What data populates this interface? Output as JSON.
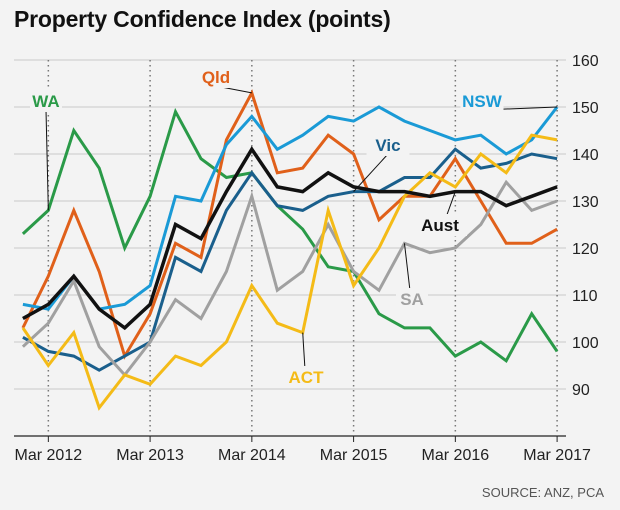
{
  "title": "Property Confidence Index (points)",
  "source": "SOURCE: ANZ, PCA",
  "chart_data": {
    "type": "line",
    "title": "Property Confidence Index (points)",
    "ylim": [
      80,
      160
    ],
    "yticks": [
      90,
      100,
      110,
      120,
      130,
      140,
      150,
      160
    ],
    "x": [
      "Dec 2011",
      "Mar 2012",
      "Jun 2012",
      "Sep 2012",
      "Dec 2012",
      "Mar 2013",
      "Jun 2013",
      "Sep 2013",
      "Dec 2013",
      "Mar 2014",
      "Jun 2014",
      "Sep 2014",
      "Dec 2014",
      "Mar 2015",
      "Jun 2015",
      "Sep 2015",
      "Dec 2015",
      "Mar 2016",
      "Jun 2016",
      "Sep 2016",
      "Dec 2016",
      "Mar 2017"
    ],
    "xtick_labels": [
      "Mar 2012",
      "Mar 2013",
      "Mar 2014",
      "Mar 2015",
      "Mar 2016",
      "Mar 2017"
    ],
    "grid": true,
    "series": [
      {
        "name": "WA",
        "color": "#2a9a48",
        "values": [
          123,
          128,
          145,
          137,
          120,
          131,
          149,
          139,
          135,
          136,
          129,
          124,
          116,
          115,
          106,
          103,
          103,
          97,
          100,
          96,
          106,
          98
        ]
      },
      {
        "name": "Qld",
        "color": "#e0601a",
        "values": [
          103,
          114,
          128,
          115,
          97,
          106,
          121,
          118,
          143,
          153,
          136,
          137,
          144,
          140,
          126,
          131,
          131,
          139,
          130,
          121,
          121,
          124
        ]
      },
      {
        "name": "NSW",
        "color": "#1a9ad6",
        "values": [
          108,
          107,
          114,
          107,
          108,
          112,
          131,
          130,
          142,
          148,
          141,
          144,
          148,
          147,
          150,
          147,
          145,
          143,
          144,
          140,
          143,
          150
        ]
      },
      {
        "name": "Vic",
        "color": "#1a5f8c",
        "values": [
          101,
          98,
          97,
          94,
          97,
          100,
          118,
          115,
          128,
          136,
          129,
          128,
          131,
          132,
          132,
          135,
          135,
          141,
          137,
          138,
          140,
          139
        ]
      },
      {
        "name": "SA",
        "color": "#a0a0a0",
        "values": [
          99,
          104,
          113,
          99,
          93,
          100,
          109,
          105,
          115,
          131,
          111,
          115,
          125,
          115,
          111,
          121,
          119,
          120,
          125,
          134,
          128,
          130
        ]
      },
      {
        "name": "ACT",
        "color": "#f4bb17",
        "values": [
          103,
          95,
          102,
          86,
          93,
          91,
          97,
          95,
          100,
          112,
          104,
          102,
          128,
          112,
          120,
          131,
          136,
          133,
          140,
          136,
          144,
          143
        ]
      },
      {
        "name": "Aust",
        "color": "#111111",
        "values": [
          105,
          108,
          114,
          107,
          103,
          108,
          125,
          122,
          132,
          141,
          133,
          132,
          136,
          133,
          132,
          132,
          131,
          132,
          132,
          129,
          131,
          133
        ]
      }
    ]
  }
}
